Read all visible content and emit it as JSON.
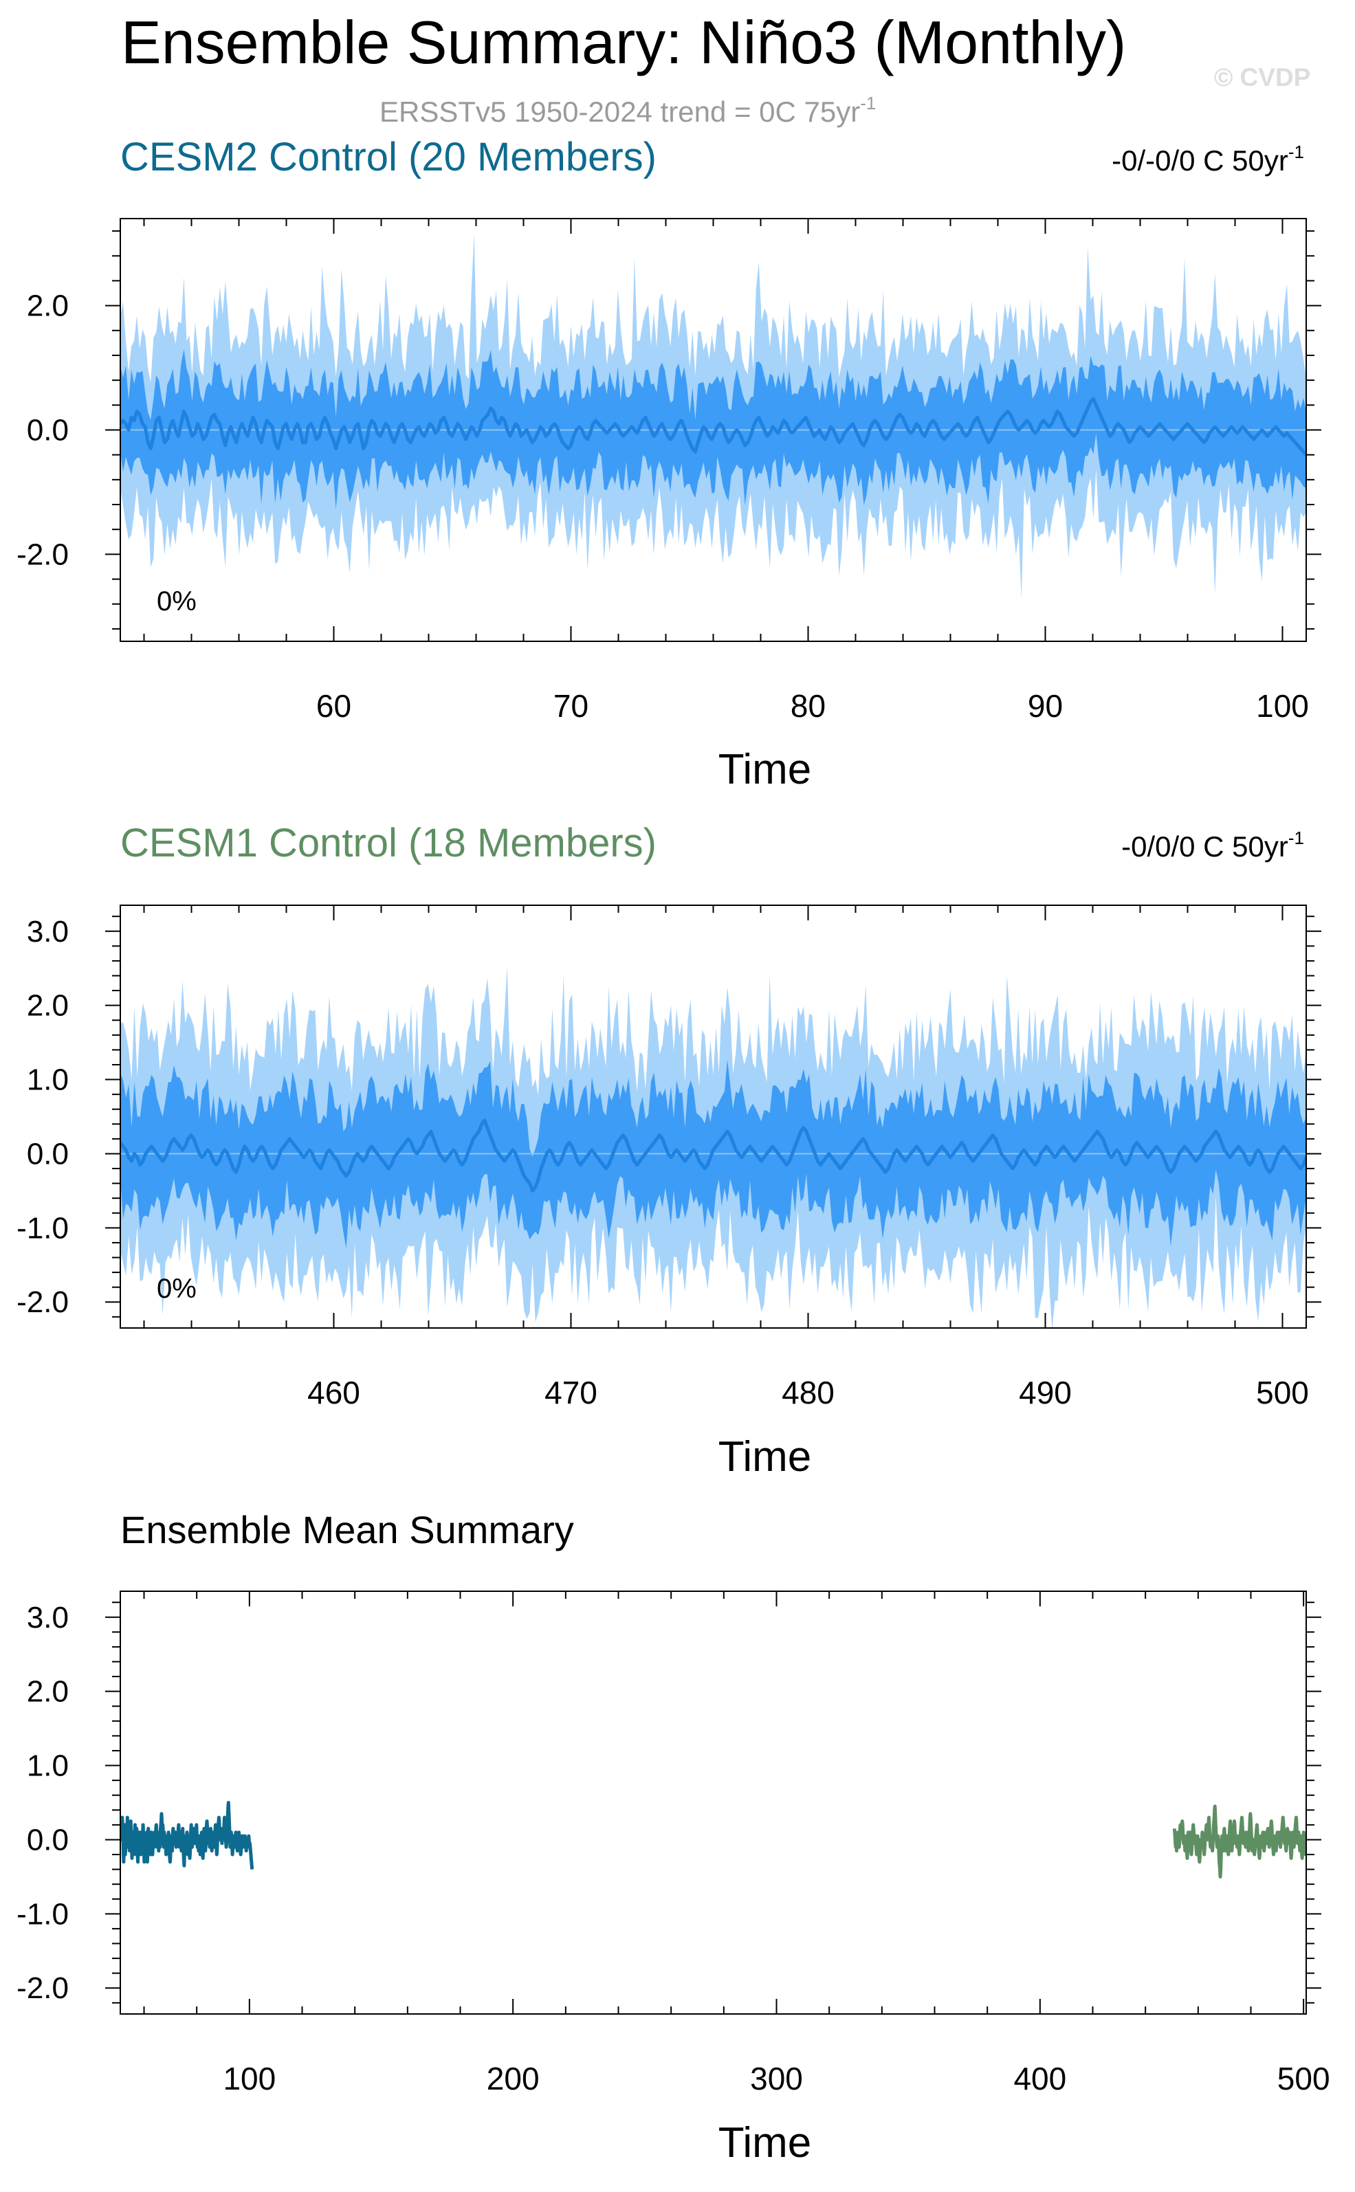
{
  "figure": {
    "title": "Ensemble Summary: Niño3 (Monthly)",
    "watermark": "© CVDP",
    "subtitle": "ERSSTv5 1950-2024 trend = 0C 75yr",
    "subtitle_sup": "-1"
  },
  "colors": {
    "band_outer": "#a6d3fa",
    "band_inner": "#3d9cf5",
    "ens_line": "#1f82e0",
    "cesm2": "#0d6b8f",
    "cesm1": "#5e8f62",
    "axis": "#000000",
    "subtitle": "#9a9a9a",
    "watermark": "#dddddd"
  },
  "chart_data": [
    {
      "type": "area",
      "title": "CESM2 Control (20 Members)",
      "title_color": "#0d6b8f",
      "trend_text": "-0/-0/0 C 50yr",
      "trend_sup": "-1",
      "percent_label": "0%",
      "xlabel": "Time",
      "xlim": [
        51,
        101
      ],
      "ylim": [
        -3.4,
        3.4
      ],
      "xticks": [
        60,
        70,
        80,
        90,
        100
      ],
      "xtick_labels": [
        "60",
        "70",
        "80",
        "90",
        "100"
      ],
      "yticks": [
        -2,
        0,
        2
      ],
      "ytick_labels": [
        "-2.0",
        "0.0",
        "2.0"
      ],
      "series": [
        {
          "name": "CESM2",
          "values": [
            0.1,
            0.15,
            0.1,
            0.0,
            0.2,
            0.15,
            0.3,
            0.25,
            0.1,
            0.05,
            -0.2,
            -0.3,
            -0.1,
            0.15,
            0.2,
            0.0,
            -0.2,
            -0.15,
            0.05,
            0.15,
            0.0,
            -0.1,
            0.1,
            0.3,
            0.2,
            0.05,
            -0.1,
            -0.05,
            0.1,
            0.0,
            -0.15,
            -0.1,
            0.05,
            0.2,
            0.25,
            0.15,
            0.1,
            -0.1,
            -0.25,
            -0.05,
            0.05,
            -0.1,
            -0.2,
            0.0,
            0.1,
            0.0,
            -0.1,
            0.05,
            0.2,
            0.1,
            -0.1,
            -0.2,
            0.0,
            0.15,
            0.1,
            0.05,
            -0.2,
            -0.3,
            -0.15,
            0.05,
            0.1,
            -0.05,
            -0.15,
            0.0,
            0.1,
            0.0,
            -0.2,
            -0.2,
            0.05,
            0.1,
            0.0,
            -0.15,
            -0.1,
            0.1,
            0.2,
            0.1,
            -0.05,
            -0.15,
            -0.3,
            -0.15,
            0.0,
            0.05,
            -0.05,
            -0.2,
            -0.1,
            0.05,
            0.1,
            -0.1,
            -0.3,
            -0.2,
            0.05,
            0.15,
            0.1,
            -0.05,
            -0.1,
            0.0,
            0.1,
            0.05,
            -0.1,
            -0.2,
            -0.1,
            0.05,
            0.1,
            0.0,
            -0.15,
            -0.2,
            -0.1,
            0.0,
            0.05,
            -0.05,
            -0.1,
            0.0,
            0.1,
            0.05,
            -0.05,
            0.0,
            0.15,
            0.2,
            0.1,
            -0.05,
            -0.1,
            0.0,
            0.1,
            0.05,
            -0.05,
            -0.15,
            -0.05,
            0.05,
            0.0,
            -0.1,
            0.0,
            0.15,
            0.2,
            0.25,
            0.35,
            0.3,
            0.15,
            0.1,
            0.2,
            0.15,
            0.0,
            -0.1,
            0.0,
            0.1,
            0.05,
            -0.1,
            -0.05,
            0.0,
            -0.1,
            -0.2,
            -0.15,
            -0.05,
            0.05,
            0.0,
            -0.1,
            -0.05,
            0.05,
            0.1,
            0.05,
            -0.1,
            -0.2,
            -0.25,
            -0.3,
            -0.25,
            -0.1,
            0.0,
            0.05,
            0.0,
            -0.1,
            -0.15,
            -0.05,
            0.1,
            0.15,
            0.1,
            0.05,
            0.0,
            -0.05,
            0.0,
            0.05,
            0.1,
            0.05,
            -0.05,
            -0.1,
            -0.05,
            0.0,
            0.05,
            0.0,
            -0.05,
            0.05,
            0.15,
            0.2,
            0.1,
            0.0,
            -0.1,
            -0.05,
            0.05,
            0.1,
            0.0,
            -0.1,
            -0.15,
            -0.1,
            0.0,
            0.1,
            0.15,
            0.05,
            -0.1,
            -0.2,
            -0.3,
            -0.35,
            -0.2,
            -0.05,
            0.05,
            0.0,
            -0.1,
            -0.15,
            -0.05,
            0.05,
            0.1,
            0.05,
            -0.1,
            -0.2,
            -0.15,
            -0.05,
            0.0,
            -0.05,
            -0.15,
            -0.25,
            -0.2,
            -0.1,
            0.05,
            0.15,
            0.2,
            0.1,
            0.0,
            -0.1,
            -0.05,
            0.05,
            0.0,
            -0.05,
            0.05,
            0.15,
            0.1,
            0.0,
            -0.05,
            0.0,
            0.05,
            0.1,
            0.15,
            0.2,
            0.1,
            0.0,
            -0.1,
            -0.05,
            0.0,
            -0.1,
            -0.15,
            -0.05,
            0.05,
            0.0,
            -0.1,
            -0.2,
            -0.15,
            -0.05,
            0.0,
            0.05,
            0.1,
            0.0,
            -0.1,
            -0.2,
            -0.25,
            -0.15,
            0.0,
            0.1,
            0.15,
            0.1,
            0.0,
            -0.1,
            -0.15,
            -0.1,
            0.0,
            0.1,
            0.2,
            0.25,
            0.2,
            0.1,
            0.0,
            -0.05,
            0.0,
            0.1,
            0.05,
            -0.05,
            -0.1,
            0.0,
            0.1,
            0.15,
            0.1,
            0.0,
            -0.1,
            -0.15,
            -0.1,
            -0.05,
            0.0,
            0.05,
            0.1,
            0.05,
            -0.05,
            -0.1,
            -0.05,
            0.05,
            0.15,
            0.2,
            0.1,
            0.0,
            -0.1,
            -0.2,
            -0.15,
            -0.05,
            0.05,
            0.15,
            0.2,
            0.25,
            0.3,
            0.25,
            0.15,
            0.05,
            0.0,
            0.05,
            0.1,
            0.15,
            0.1,
            0.0,
            -0.05,
            0.0,
            0.1,
            0.15,
            0.1,
            0.05,
            0.1,
            0.2,
            0.3,
            0.25,
            0.15,
            0.05,
            0.0,
            -0.05,
            -0.1,
            -0.05,
            0.05,
            0.15,
            0.25,
            0.35,
            0.45,
            0.5,
            0.4,
            0.3,
            0.2,
            0.1,
            0.0,
            -0.1,
            -0.05,
            0.05,
            0.1,
            0.05,
            0.0,
            -0.1,
            -0.2,
            -0.15,
            -0.05,
            0.0,
            0.05,
            0.0,
            -0.05,
            -0.1,
            -0.05,
            0.0,
            0.05,
            0.1,
            0.05,
            0.0,
            -0.05,
            -0.1,
            -0.15,
            -0.1,
            -0.05,
            0.0,
            0.05,
            0.1,
            0.05,
            0.0,
            -0.05,
            -0.1,
            -0.15,
            -0.2,
            -0.15,
            -0.05,
            0.0,
            0.05,
            0.0,
            -0.05,
            -0.1,
            -0.05,
            0.0,
            0.05,
            0.0,
            -0.05,
            0.0,
            0.05,
            0.0,
            -0.05,
            -0.1,
            -0.15,
            -0.1,
            -0.05,
            0.0,
            -0.05,
            -0.1,
            -0.05,
            0.0,
            0.05,
            0.0,
            -0.05,
            -0.1,
            -0.05,
            -0.1,
            -0.15,
            -0.2,
            -0.25,
            -0.3,
            -0.35,
            -0.4
          ]
        },
        {
          "name": "ens_range",
          "values": []
        }
      ]
    },
    {
      "type": "area",
      "title": "CESM1 Control (18 Members)",
      "title_color": "#5e8f62",
      "trend_text": "-0/0/0 C 50yr",
      "trend_sup": "-1",
      "percent_label": "0%",
      "xlabel": "Time",
      "xlim": [
        451,
        501
      ],
      "ylim": [
        -2.35,
        3.35
      ],
      "xticks": [
        460,
        470,
        480,
        490,
        500
      ],
      "xtick_labels": [
        "460",
        "470",
        "480",
        "490",
        "500"
      ],
      "yticks": [
        -2,
        -1,
        0,
        1,
        2,
        3
      ],
      "ytick_labels": [
        "-2.0",
        "-1.0",
        "0.0",
        "1.0",
        "2.0",
        "3.0"
      ],
      "series": [
        {
          "name": "CESM1",
          "values": [
            0.15,
            0.1,
            0.05,
            -0.05,
            -0.1,
            0.0,
            -0.05,
            -0.15,
            -0.1,
            0.0,
            0.05,
            0.1,
            0.05,
            0.0,
            -0.05,
            -0.1,
            -0.05,
            0.05,
            0.15,
            0.2,
            0.15,
            0.1,
            0.05,
            0.1,
            0.2,
            0.25,
            0.2,
            0.1,
            0.0,
            -0.05,
            0.0,
            0.05,
            0.0,
            -0.1,
            -0.15,
            -0.1,
            0.0,
            0.05,
            0.0,
            -0.1,
            -0.2,
            -0.25,
            -0.15,
            0.0,
            0.1,
            0.05,
            -0.05,
            -0.1,
            -0.05,
            0.05,
            0.1,
            0.05,
            -0.05,
            -0.15,
            -0.2,
            -0.15,
            -0.05,
            0.05,
            0.1,
            0.15,
            0.2,
            0.15,
            0.1,
            0.05,
            0.0,
            -0.05,
            0.0,
            0.05,
            0.0,
            -0.1,
            -0.15,
            -0.2,
            -0.1,
            0.0,
            0.05,
            0.0,
            -0.05,
            -0.1,
            -0.2,
            -0.25,
            -0.3,
            -0.25,
            -0.15,
            -0.05,
            0.0,
            -0.05,
            -0.1,
            -0.05,
            0.05,
            0.1,
            0.05,
            0.0,
            -0.05,
            -0.1,
            -0.15,
            -0.2,
            -0.15,
            -0.05,
            0.0,
            0.05,
            0.1,
            0.15,
            0.2,
            0.15,
            0.05,
            0.0,
            0.05,
            0.1,
            0.2,
            0.25,
            0.3,
            0.2,
            0.1,
            0.0,
            -0.05,
            -0.1,
            -0.05,
            0.0,
            0.05,
            0.0,
            -0.1,
            -0.15,
            -0.1,
            0.0,
            0.1,
            0.2,
            0.25,
            0.3,
            0.4,
            0.45,
            0.35,
            0.25,
            0.15,
            0.05,
            0.0,
            -0.05,
            -0.1,
            -0.05,
            0.0,
            0.05,
            0.0,
            -0.1,
            -0.2,
            -0.3,
            -0.35,
            -0.4,
            -0.5,
            -0.45,
            -0.35,
            -0.2,
            -0.1,
            0.0,
            0.05,
            0.0,
            -0.1,
            -0.15,
            -0.1,
            0.0,
            0.1,
            0.15,
            0.1,
            0.0,
            -0.1,
            -0.15,
            -0.1,
            -0.05,
            0.0,
            0.05,
            0.0,
            -0.05,
            -0.1,
            -0.15,
            -0.2,
            -0.15,
            -0.05,
            0.05,
            0.15,
            0.2,
            0.25,
            0.2,
            0.1,
            0.0,
            -0.1,
            -0.15,
            -0.1,
            -0.05,
            0.0,
            0.05,
            0.1,
            0.15,
            0.2,
            0.25,
            0.2,
            0.1,
            0.0,
            -0.05,
            0.0,
            0.05,
            0.0,
            -0.05,
            -0.1,
            -0.05,
            0.0,
            0.05,
            0.0,
            -0.1,
            -0.15,
            -0.2,
            -0.15,
            -0.05,
            0.05,
            0.1,
            0.15,
            0.2,
            0.25,
            0.3,
            0.25,
            0.15,
            0.05,
            0.0,
            -0.05,
            0.0,
            0.05,
            0.1,
            0.05,
            0.0,
            -0.05,
            -0.1,
            -0.05,
            0.0,
            0.05,
            0.1,
            0.05,
            0.0,
            -0.05,
            -0.1,
            -0.15,
            -0.1,
            0.0,
            0.1,
            0.2,
            0.3,
            0.35,
            0.3,
            0.2,
            0.1,
            0.0,
            -0.1,
            -0.15,
            -0.1,
            -0.05,
            0.0,
            -0.05,
            -0.1,
            -0.15,
            -0.2,
            -0.15,
            -0.1,
            -0.05,
            0.0,
            0.05,
            0.1,
            0.15,
            0.2,
            0.15,
            0.05,
            0.0,
            -0.05,
            -0.1,
            -0.15,
            -0.2,
            -0.25,
            -0.2,
            -0.1,
            0.0,
            0.05,
            0.0,
            -0.05,
            -0.1,
            -0.05,
            0.0,
            0.05,
            0.1,
            0.05,
            0.0,
            -0.1,
            -0.15,
            -0.1,
            -0.05,
            0.0,
            0.05,
            0.1,
            0.05,
            0.0,
            -0.05,
            0.0,
            0.05,
            0.1,
            0.15,
            0.1,
            0.0,
            -0.05,
            -0.1,
            -0.05,
            0.0,
            0.05,
            0.1,
            0.15,
            0.2,
            0.25,
            0.2,
            0.1,
            0.0,
            -0.05,
            -0.1,
            -0.15,
            -0.2,
            -0.15,
            -0.05,
            0.0,
            0.05,
            0.0,
            -0.05,
            -0.1,
            -0.15,
            -0.1,
            0.0,
            0.05,
            0.1,
            0.05,
            0.0,
            -0.05,
            0.0,
            0.05,
            0.1,
            0.05,
            0.0,
            -0.05,
            -0.1,
            -0.05,
            0.0,
            0.05,
            0.1,
            0.15,
            0.2,
            0.25,
            0.3,
            0.25,
            0.2,
            0.1,
            0.0,
            -0.05,
            0.0,
            0.05,
            0.0,
            -0.1,
            -0.15,
            -0.1,
            0.0,
            0.1,
            0.15,
            0.1,
            0.05,
            0.0,
            -0.05,
            0.0,
            0.05,
            0.1,
            0.05,
            0.0,
            -0.1,
            -0.2,
            -0.25,
            -0.2,
            -0.1,
            0.0,
            0.05,
            0.1,
            0.05,
            0.0,
            -0.05,
            -0.1,
            -0.05,
            0.0,
            0.1,
            0.15,
            0.2,
            0.25,
            0.3,
            0.25,
            0.15,
            0.05,
            0.0,
            -0.05,
            0.0,
            0.05,
            0.1,
            0.05,
            0.0,
            -0.1,
            -0.15,
            -0.1,
            0.0,
            0.05,
            0.0,
            -0.1,
            -0.2,
            -0.25,
            -0.2,
            -0.1,
            0.0,
            0.05,
            0.1,
            0.05,
            0.0,
            -0.05,
            -0.1,
            -0.15,
            -0.2,
            -0.15,
            -0.05
          ]
        }
      ]
    },
    {
      "type": "line",
      "title": "Ensemble Mean Summary",
      "title_color": "#000000",
      "xlabel": "Time",
      "xlim": [
        51,
        501
      ],
      "ylim": [
        -2.35,
        3.35
      ],
      "xticks": [
        100,
        200,
        300,
        400,
        500
      ],
      "xtick_labels": [
        "100",
        "200",
        "300",
        "400",
        "500"
      ],
      "yticks": [
        -2,
        -1,
        0,
        1,
        2,
        3
      ],
      "ytick_labels": [
        "-2.0",
        "-1.0",
        "0.0",
        "1.0",
        "2.0",
        "3.0"
      ],
      "series": [
        {
          "name": "CESM2",
          "x_start": 51,
          "x_end": 101,
          "color": "#0d6b8f"
        },
        {
          "name": "CESM1",
          "x_start": 451,
          "x_end": 501,
          "color": "#5e8f62"
        }
      ]
    }
  ]
}
